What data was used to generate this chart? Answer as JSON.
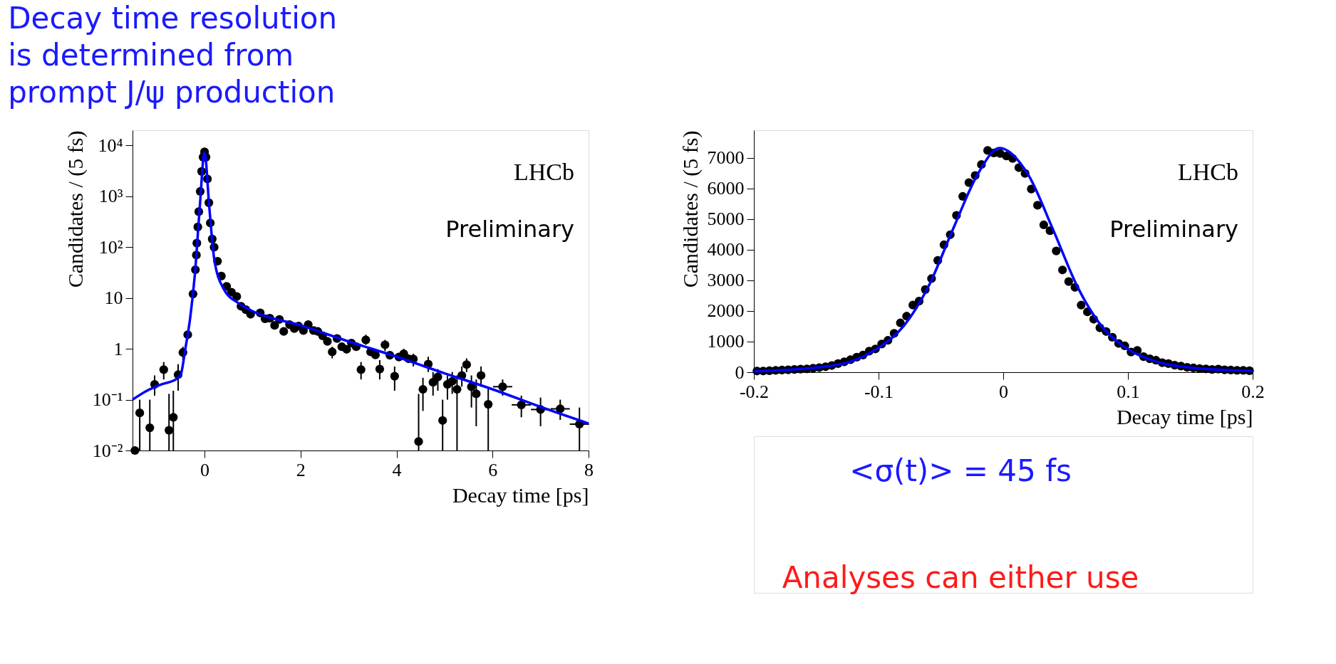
{
  "chart_data": [
    {
      "type": "scatter",
      "title": "Decay time resolution is determined from prompt J/ψ production",
      "xlabel": "Decay time [ps]",
      "ylabel": "Candidates / (5 fs)",
      "log": "y",
      "xlim": [
        -1.5,
        8
      ],
      "xticks": [
        0,
        2,
        4,
        6,
        8
      ],
      "ylim": [
        0.01,
        20000
      ],
      "yticks": [
        {
          "value": 0.01,
          "label": "10⁻²"
        },
        {
          "value": 0.1,
          "label": "10⁻¹"
        },
        1,
        10,
        {
          "value": 100,
          "label": "10²"
        },
        {
          "value": 1000,
          "label": "10³"
        },
        {
          "value": 10000,
          "label": "10⁴"
        }
      ],
      "annotations": [
        "LHCb",
        "Preliminary"
      ],
      "series": [
        {
          "marker": "circle",
          "color": "#000000",
          "x": [
            -1.45,
            -1.35,
            -1.14,
            -1.04,
            -0.85,
            -0.74,
            -0.65,
            -0.55,
            -0.45,
            -0.35,
            -0.24,
            -0.19,
            -0.17,
            -0.16,
            -0.14,
            -0.12,
            -0.09,
            -0.06,
            -0.03,
            0,
            0.03,
            0.06,
            0.09,
            0.12,
            0.16,
            0.2,
            0.27,
            0.35,
            0.46,
            0.56,
            0.67,
            0.76,
            0.86,
            0.96,
            1.16,
            1.26,
            1.36,
            1.46,
            1.56,
            1.65,
            1.77,
            1.87,
            1.96,
            2.06,
            2.16,
            2.27,
            2.36,
            2.46,
            2.56,
            2.66,
            2.76,
            2.86,
            2.96,
            3.06,
            3.16,
            3.26,
            3.36,
            3.46,
            3.56,
            3.65,
            3.76,
            3.86,
            3.96,
            4.05,
            4.15,
            4.25,
            4.35,
            4.46,
            4.55,
            4.66,
            4.76,
            4.86,
            4.96,
            5.06,
            5.16,
            5.26,
            5.36,
            5.46,
            5.56,
            5.66,
            5.76,
            5.91,
            6.21,
            6.6,
            7.0,
            7.41,
            7.81
          ],
          "values": [
            0.01,
            0.055,
            0.028,
            0.2,
            0.39,
            0.025,
            0.045,
            0.31,
            0.85,
            1.9,
            12,
            36,
            70,
            120,
            250,
            500,
            1250,
            3100,
            5900,
            7500,
            5900,
            2200,
            750,
            300,
            145,
            100,
            53,
            27,
            17,
            13,
            10.7,
            6.9,
            5.9,
            4.8,
            5.1,
            3.9,
            4,
            2.9,
            3.8,
            2.2,
            3,
            2.5,
            2.8,
            2.3,
            3,
            2.3,
            2.2,
            1.8,
            1.4,
            0.87,
            1.6,
            1.1,
            0.98,
            1.3,
            1.1,
            0.39,
            1.5,
            0.87,
            0.76,
            0.4,
            1.2,
            0.75,
            0.29,
            0.69,
            0.8,
            0.64,
            0.63,
            0.015,
            0.16,
            0.5,
            0.22,
            0.28,
            0.039,
            0.2,
            0.23,
            0.16,
            0.3,
            0.49,
            0.18,
            0.13,
            0.3,
            0.081,
            0.18,
            0.079,
            0.064,
            0.066,
            0.033
          ],
          "errors": [
            null,
            [
              0.01,
              0.1
            ],
            [
              0.01,
              0.1
            ],
            [
              0.12,
              0.3
            ],
            [
              0.25,
              0.55
            ],
            [
              0.01,
              0.13
            ],
            [
              0.01,
              0.15
            ],
            [
              0.15,
              0.5
            ],
            [
              0.6,
              1.1
            ],
            null,
            null,
            null,
            null,
            null,
            null,
            null,
            null,
            null,
            null,
            null,
            null,
            null,
            null,
            null,
            null,
            null,
            null,
            null,
            null,
            null,
            null,
            null,
            null,
            null,
            null,
            null,
            null,
            null,
            null,
            null,
            null,
            null,
            null,
            null,
            null,
            null,
            null,
            null,
            null,
            [
              0.65,
              1.1
            ],
            null,
            null,
            null,
            null,
            null,
            [
              0.25,
              0.55
            ],
            [
              1.2,
              1.9
            ],
            null,
            null,
            [
              0.25,
              0.6
            ],
            [
              0.9,
              1.5
            ],
            null,
            [
              0.15,
              0.45
            ],
            null,
            [
              0.6,
              1.0
            ],
            null,
            [
              0.45,
              0.8
            ],
            [
              0.01,
              0.13
            ],
            [
              0.06,
              0.27
            ],
            [
              0.35,
              0.7
            ],
            [
              0.12,
              0.35
            ],
            [
              0.15,
              0.4
            ],
            [
              0.01,
              0.1
            ],
            [
              0.1,
              0.3
            ],
            [
              0.13,
              0.35
            ],
            [
              0.01,
              0.3
            ],
            [
              0.18,
              0.45
            ],
            [
              0.35,
              0.65
            ],
            [
              0.07,
              0.3
            ],
            [
              0.03,
              0.25
            ],
            [
              0.18,
              0.45
            ],
            [
              0.01,
              0.17
            ],
            [
              0.12,
              0.25
            ],
            [
              0.045,
              0.12
            ],
            [
              0.03,
              0.11
            ],
            [
              0.04,
              0.1
            ],
            [
              0.01,
              0.07
            ]
          ],
          "xerrors": [
            null,
            null,
            null,
            null,
            null,
            null,
            null,
            null,
            null,
            null,
            null,
            null,
            null,
            null,
            null,
            null,
            null,
            null,
            null,
            null,
            null,
            null,
            null,
            null,
            null,
            null,
            null,
            null,
            null,
            null,
            null,
            null,
            null,
            null,
            null,
            null,
            null,
            null,
            null,
            null,
            null,
            null,
            null,
            null,
            null,
            null,
            null,
            null,
            null,
            null,
            null,
            null,
            null,
            null,
            null,
            null,
            null,
            null,
            null,
            null,
            null,
            null,
            null,
            null,
            null,
            null,
            null,
            null,
            null,
            null,
            null,
            null,
            null,
            null,
            null,
            null,
            null,
            null,
            null,
            null,
            null,
            null,
            0.2,
            0.2,
            0.2,
            0.2,
            0.2
          ]
        },
        {
          "type": "line",
          "line_style": "solid",
          "color": "#0000ff",
          "x": [
            -1.5,
            -1.2,
            -0.9,
            -0.6,
            -0.5,
            -0.4,
            -0.3,
            -0.2,
            -0.1,
            0,
            0.1,
            0.2,
            0.4,
            0.7,
            1,
            2,
            3,
            4,
            5,
            6,
            7,
            8
          ],
          "values": [
            0.1,
            0.15,
            0.2,
            0.25,
            0.3,
            1,
            4,
            30,
            600,
            7300,
            600,
            60,
            15,
            8,
            5.5,
            2.9,
            1.4,
            0.7,
            0.33,
            0.16,
            0.072,
            0.034
          ]
        }
      ]
    },
    {
      "type": "scatter",
      "xlabel": "Decay time [ps]",
      "ylabel": "Candidates / (5 fs)",
      "xlim": [
        -0.2,
        0.2
      ],
      "xticks": [
        -0.2,
        -0.1,
        0,
        0.1,
        0.2
      ],
      "ylim": [
        0,
        7900
      ],
      "yticks": [
        0,
        1000,
        2000,
        3000,
        4000,
        5000,
        6000,
        7000
      ],
      "annotations": [
        "LHCb",
        "Preliminary",
        "<σ(t)>  =  45 fs",
        "Analyses can either use"
      ],
      "series": [
        {
          "marker": "circle",
          "color": "#000000",
          "x": [
            -0.1975,
            -0.1925,
            -0.1875,
            -0.1825,
            -0.1775,
            -0.1725,
            -0.1675,
            -0.1625,
            -0.1575,
            -0.1525,
            -0.1475,
            -0.1425,
            -0.1375,
            -0.1325,
            -0.1275,
            -0.1225,
            -0.1175,
            -0.1125,
            -0.1075,
            -0.1025,
            -0.0975,
            -0.0925,
            -0.0875,
            -0.0825,
            -0.0775,
            -0.0725,
            -0.0675,
            -0.0625,
            -0.0575,
            -0.0525,
            -0.0475,
            -0.0425,
            -0.0375,
            -0.0325,
            -0.0275,
            -0.0225,
            -0.0175,
            -0.0125,
            -0.0075,
            -0.0025,
            0.0025,
            0.0075,
            0.0125,
            0.0175,
            0.0225,
            0.0275,
            0.0325,
            0.0375,
            0.0425,
            0.0475,
            0.0525,
            0.0575,
            0.0625,
            0.0675,
            0.0725,
            0.0775,
            0.0825,
            0.0875,
            0.0925,
            0.0975,
            0.1025,
            0.1075,
            0.1125,
            0.1175,
            0.1225,
            0.1275,
            0.1325,
            0.1375,
            0.1425,
            0.1475,
            0.1525,
            0.1575,
            0.1625,
            0.1675,
            0.1725,
            0.1775,
            0.1825,
            0.1875,
            0.1925,
            0.1975
          ],
          "values": [
            40,
            40,
            50,
            60,
            70,
            80,
            90,
            100,
            110,
            130,
            150,
            180,
            220,
            280,
            340,
            410,
            490,
            560,
            690,
            760,
            920,
            1040,
            1270,
            1610,
            1830,
            2190,
            2320,
            2700,
            3060,
            3650,
            4160,
            4490,
            5120,
            5740,
            6190,
            6420,
            6780,
            7240,
            7160,
            7140,
            7060,
            6980,
            6680,
            6490,
            5980,
            5450,
            4810,
            4620,
            3960,
            3340,
            2960,
            2770,
            2190,
            1970,
            1730,
            1450,
            1330,
            1140,
            940,
            860,
            660,
            710,
            510,
            440,
            390,
            310,
            280,
            230,
            200,
            160,
            140,
            120,
            110,
            90,
            100,
            80,
            70,
            60,
            60,
            50
          ]
        },
        {
          "type": "line",
          "line_style": "solid",
          "color": "#0000ff",
          "x": [
            -0.2,
            -0.15,
            -0.12,
            -0.1,
            -0.08,
            -0.06,
            -0.04,
            -0.02,
            -0.003,
            0.02,
            0.04,
            0.06,
            0.08,
            0.1,
            0.12,
            0.15,
            0.2
          ],
          "values": [
            30,
            150,
            380,
            800,
            1500,
            2800,
            4700,
            6500,
            7320,
            6450,
            4650,
            2750,
            1450,
            750,
            380,
            150,
            40
          ]
        }
      ]
    }
  ]
}
